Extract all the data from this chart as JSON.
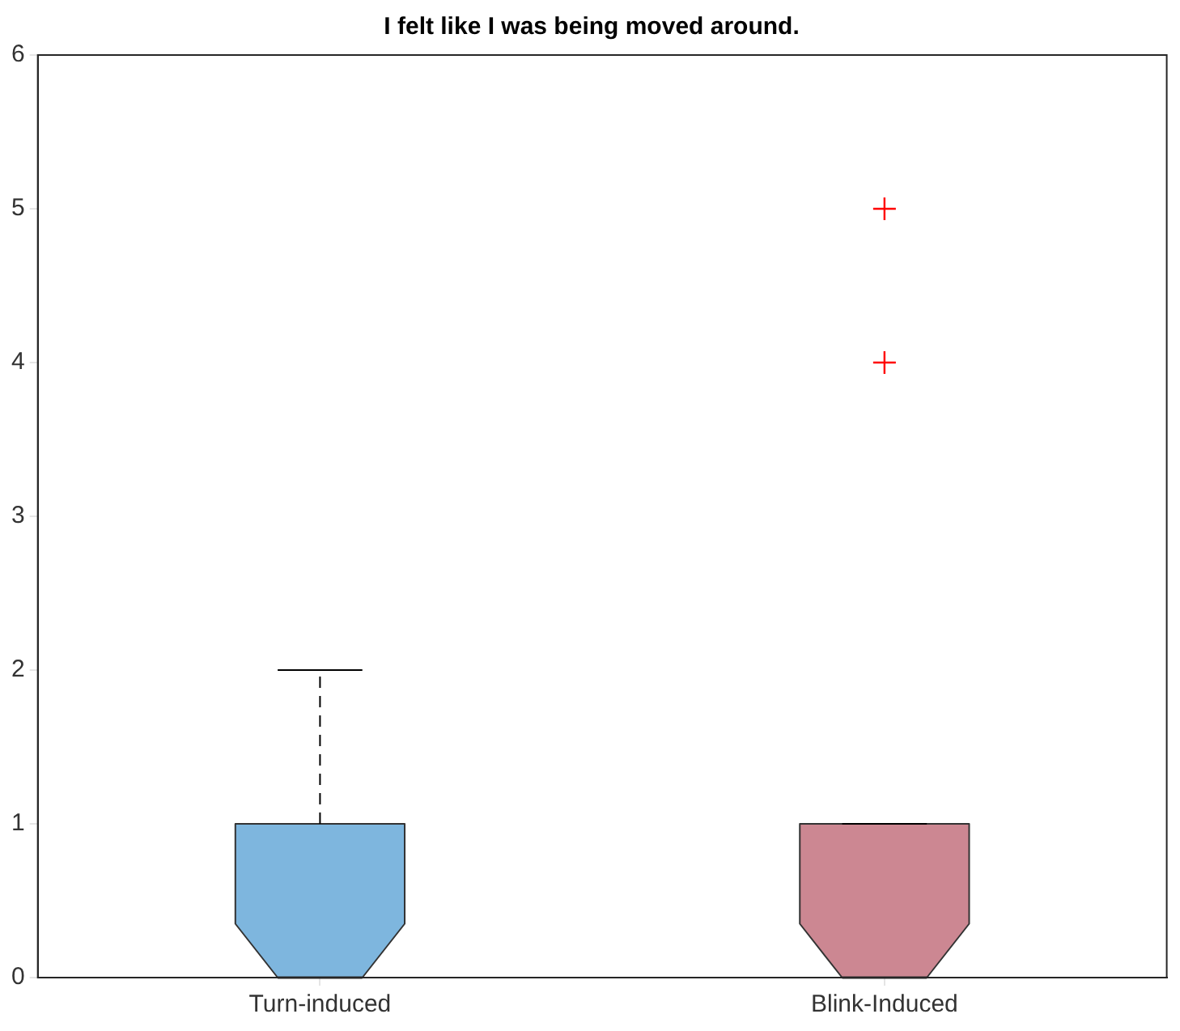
{
  "chart_data": {
    "type": "box",
    "title": "I felt like I was being moved around.",
    "categories": [
      "Turn-induced",
      "Blink-Induced"
    ],
    "colors": [
      "#7eb6de",
      "#cc8792"
    ],
    "boxes": [
      {
        "low": 0,
        "q1": 0,
        "median": 0,
        "q3": 1,
        "high": 2
      },
      {
        "low": 0,
        "q1": 0,
        "median": 0,
        "q3": 1,
        "high": 1,
        "outliers": [
          4,
          5
        ]
      }
    ],
    "ylim": [
      0,
      6
    ],
    "yticks": [
      0,
      1,
      2,
      3,
      4,
      5,
      6
    ],
    "grid": false,
    "legend": false
  }
}
